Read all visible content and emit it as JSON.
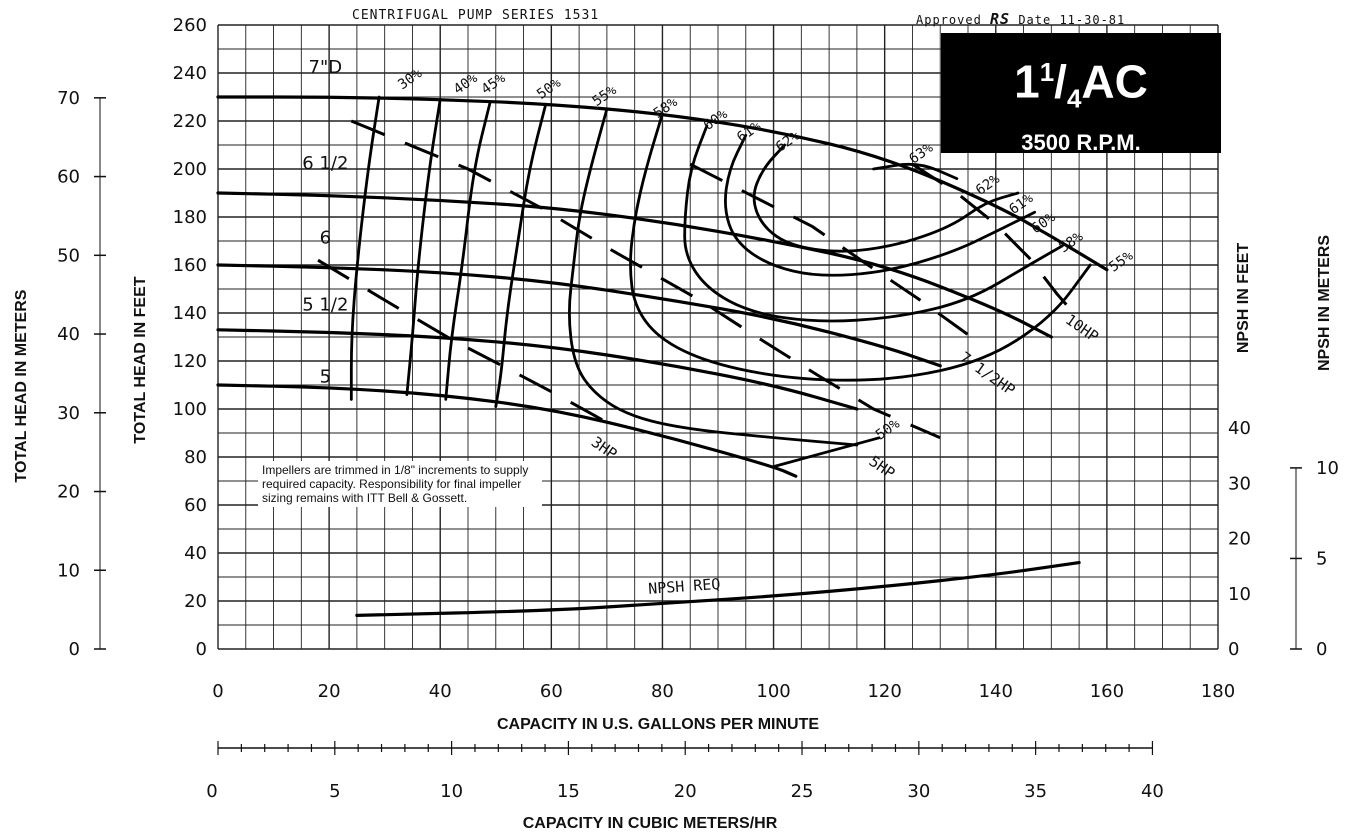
{
  "header": {
    "series_label": "CENTRIFUGAL PUMP SERIES 1531",
    "approved_label": "Approved",
    "approved_initials": "RS",
    "date_label": "Date 11-30-81"
  },
  "title_box": {
    "model_whole": "1",
    "model_num": "1",
    "model_den": "4",
    "model_suffix": "AC",
    "rpm": "3500 R.P.M."
  },
  "note": "Impellers are trimmed in 1/8\" increments to supply required capacity. Responsibility for final impeller sizing remains with ITT Bell & Gossett.",
  "chart_data": {
    "type": "line",
    "title": "CENTRIFUGAL PUMP SERIES 1531",
    "xlabel": "CAPACITY IN U.S. GALLONS PER MINUTE",
    "x2label": "CAPACITY IN CUBIC METERS/HR",
    "ylabel_left_feet": "TOTAL HEAD IN FEET",
    "ylabel_left_meters": "TOTAL HEAD IN METERS",
    "ylabel_right_feet": "NPSH IN FEET",
    "ylabel_right_meters": "NPSH IN METERS",
    "xlim": [
      0,
      180
    ],
    "ylim": [
      0,
      260
    ],
    "x_ticks": [
      0,
      20,
      40,
      60,
      80,
      100,
      120,
      140,
      160,
      180
    ],
    "y_ticks": [
      0,
      20,
      40,
      60,
      80,
      100,
      120,
      140,
      160,
      180,
      200,
      220,
      240,
      260
    ],
    "meters_ticks": [
      0,
      10,
      20,
      30,
      40,
      50,
      60,
      70
    ],
    "m3h_ticks": [
      0,
      5,
      10,
      15,
      20,
      25,
      30,
      35,
      40
    ],
    "npsh_ft_ticks": [
      0,
      10,
      20,
      30,
      40
    ],
    "npsh_m_ticks": [
      0,
      5,
      10
    ],
    "grid": true,
    "impeller_curves": [
      {
        "name": "7\"D",
        "label_gpm": 15,
        "label_head": 240,
        "points": [
          [
            0,
            230
          ],
          [
            20,
            230
          ],
          [
            40,
            229
          ],
          [
            60,
            227
          ],
          [
            80,
            223
          ],
          [
            100,
            216
          ],
          [
            120,
            205
          ],
          [
            140,
            185
          ],
          [
            150,
            172
          ],
          [
            160,
            158
          ]
        ]
      },
      {
        "name": "6 1/2",
        "label_gpm": 15,
        "label_head": 200,
        "points": [
          [
            0,
            190
          ],
          [
            20,
            189
          ],
          [
            40,
            187
          ],
          [
            60,
            184
          ],
          [
            80,
            178
          ],
          [
            100,
            170
          ],
          [
            120,
            160
          ],
          [
            140,
            142
          ],
          [
            150,
            130
          ]
        ]
      },
      {
        "name": "6",
        "label_gpm": 15,
        "label_head": 169,
        "points": [
          [
            0,
            160
          ],
          [
            20,
            159
          ],
          [
            40,
            157
          ],
          [
            60,
            153
          ],
          [
            80,
            146
          ],
          [
            100,
            138
          ],
          [
            120,
            126
          ],
          [
            130,
            118
          ]
        ]
      },
      {
        "name": "5 1/2",
        "label_gpm": 15,
        "label_head": 141,
        "points": [
          [
            0,
            133
          ],
          [
            20,
            132
          ],
          [
            40,
            130
          ],
          [
            60,
            126
          ],
          [
            80,
            119
          ],
          [
            100,
            110
          ],
          [
            115,
            100
          ]
        ]
      },
      {
        "name": "5",
        "label_gpm": 15,
        "label_head": 111,
        "points": [
          [
            0,
            110
          ],
          [
            20,
            109
          ],
          [
            40,
            106
          ],
          [
            60,
            100
          ],
          [
            80,
            89
          ],
          [
            100,
            76
          ],
          [
            104,
            72
          ]
        ]
      }
    ],
    "efficiency_curves": [
      {
        "label": "30%",
        "label_gpm": 35,
        "label_head": 236,
        "points": [
          [
            29,
            230
          ],
          [
            27,
            200
          ],
          [
            25,
            160
          ],
          [
            24,
            130
          ],
          [
            24,
            104
          ]
        ]
      },
      {
        "label": "40%",
        "label_gpm": 45,
        "label_head": 234,
        "points": [
          [
            40,
            229
          ],
          [
            38,
            200
          ],
          [
            36,
            160
          ],
          [
            35,
            130
          ],
          [
            34,
            106
          ]
        ]
      },
      {
        "label": "45%",
        "label_gpm": 50,
        "label_head": 234,
        "points": [
          [
            49,
            228
          ],
          [
            46,
            200
          ],
          [
            44,
            160
          ],
          [
            42,
            130
          ],
          [
            41,
            104
          ]
        ]
      },
      {
        "label": "50%",
        "label_gpm": 60,
        "label_head": 232,
        "points": [
          [
            59,
            227
          ],
          [
            56,
            200
          ],
          [
            54,
            170
          ],
          [
            52,
            140
          ],
          [
            51,
            115
          ],
          [
            50,
            101
          ]
        ]
      },
      {
        "label": "55%",
        "label_gpm": 70,
        "label_head": 229,
        "points": [
          [
            70,
            225
          ],
          [
            67,
            200
          ],
          [
            65,
            180
          ],
          [
            64,
            160
          ],
          [
            63,
            140
          ],
          [
            64,
            120
          ],
          [
            67,
            108
          ],
          [
            73,
            98
          ],
          [
            83,
            92
          ],
          [
            100,
            88
          ],
          [
            115,
            85
          ]
        ]
      },
      {
        "label": "58%",
        "label_gpm": 81,
        "label_head": 224,
        "points": [
          [
            80,
            223
          ],
          [
            77,
            200
          ],
          [
            75,
            180
          ],
          [
            74,
            160
          ],
          [
            75,
            142
          ],
          [
            80,
            128
          ],
          [
            90,
            118
          ],
          [
            105,
            112
          ],
          [
            122,
            112
          ],
          [
            138,
            120
          ],
          [
            150,
            138
          ],
          [
            157,
            160
          ]
        ]
      },
      {
        "label": "60%",
        "label_gpm": 90,
        "label_head": 219,
        "points": [
          [
            88,
            218
          ],
          [
            85,
            200
          ],
          [
            84,
            180
          ],
          [
            84,
            164
          ],
          [
            88,
            150
          ],
          [
            96,
            140
          ],
          [
            108,
            136
          ],
          [
            122,
            138
          ],
          [
            135,
            145
          ],
          [
            146,
            160
          ],
          [
            152,
            168
          ]
        ]
      },
      {
        "label": "61%",
        "label_gpm": 96,
        "label_head": 214,
        "points": [
          [
            95,
            214
          ],
          [
            92,
            200
          ],
          [
            91,
            184
          ],
          [
            93,
            170
          ],
          [
            99,
            160
          ],
          [
            108,
            155
          ],
          [
            120,
            157
          ],
          [
            132,
            165
          ],
          [
            141,
            175
          ],
          [
            147,
            182
          ]
        ]
      },
      {
        "label": "62%",
        "label_gpm": 103,
        "label_head": 210,
        "points": [
          [
            102,
            210
          ],
          [
            98,
            200
          ],
          [
            96,
            188
          ],
          [
            98,
            176
          ],
          [
            103,
            168
          ],
          [
            112,
            165
          ],
          [
            122,
            168
          ],
          [
            132,
            176
          ],
          [
            138,
            186
          ],
          [
            144,
            190
          ]
        ]
      },
      {
        "label": "63%",
        "label_gpm": 127,
        "label_head": 205,
        "points": [
          [
            118,
            200
          ],
          [
            126,
            203
          ],
          [
            133,
            196
          ]
        ]
      },
      {
        "label": "62%",
        "label_gpm": 139,
        "label_head": 192,
        "points": []
      },
      {
        "label": "61%",
        "label_gpm": 145,
        "label_head": 184,
        "points": []
      },
      {
        "label": "60%",
        "label_gpm": 149,
        "label_head": 176,
        "points": []
      },
      {
        "label": "58%",
        "label_gpm": 154,
        "label_head": 168,
        "points": []
      },
      {
        "label": "55%",
        "label_gpm": 163,
        "label_head": 160,
        "points": []
      },
      {
        "label": "50%",
        "label_gpm": 121,
        "label_head": 90,
        "points": [
          [
            100,
            76
          ],
          [
            119,
            88
          ]
        ]
      }
    ],
    "horsepower_lines": [
      {
        "label": "3HP",
        "label_gpm": 69,
        "label_head": 82,
        "points": [
          [
            18,
            162
          ],
          [
            31,
            144
          ],
          [
            42,
            129
          ],
          [
            52,
            117
          ],
          [
            61,
            106
          ],
          [
            68,
            97
          ],
          [
            71,
            93
          ]
        ]
      },
      {
        "label": "5HP",
        "label_gpm": 119,
        "label_head": 74,
        "points": [
          [
            24,
            220
          ],
          [
            45,
            200
          ],
          [
            58,
            184
          ],
          [
            71,
            166
          ],
          [
            87,
            145
          ],
          [
            97,
            130
          ],
          [
            108,
            114
          ],
          [
            118,
            100
          ],
          [
            130,
            88
          ]
        ]
      },
      {
        "label": "7 1/2HP",
        "label_gpm": 138,
        "label_head": 113,
        "points": [
          [
            85,
            202
          ],
          [
            96,
            189
          ],
          [
            107,
            176
          ],
          [
            117,
            160
          ],
          [
            126,
            146
          ],
          [
            135,
            131
          ],
          [
            138,
            127
          ]
        ]
      },
      {
        "label": "10HP",
        "label_gpm": 155,
        "label_head": 132,
        "points": [
          [
            125,
            202
          ],
          [
            133,
            190
          ],
          [
            140,
            177
          ],
          [
            146,
            163
          ],
          [
            151,
            148
          ],
          [
            154,
            140
          ]
        ]
      }
    ],
    "npsh_curve": {
      "name": "NPSH REQ",
      "label_gpm": 84,
      "label_head": 24,
      "points": [
        [
          25,
          14
        ],
        [
          60,
          16
        ],
        [
          80,
          19
        ],
        [
          100,
          22
        ],
        [
          120,
          26
        ],
        [
          140,
          31
        ],
        [
          155,
          36
        ]
      ]
    }
  }
}
